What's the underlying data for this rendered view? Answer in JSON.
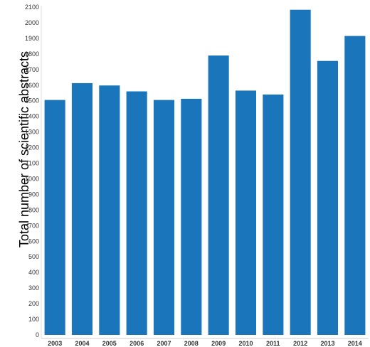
{
  "chart_data": {
    "type": "bar",
    "ylabel": "Total number of scientific abstracts",
    "xlabel": "",
    "title": "",
    "categories": [
      "2003",
      "2004",
      "2005",
      "2006",
      "2007",
      "2008",
      "2009",
      "2010",
      "2011",
      "2012",
      "2013",
      "2014"
    ],
    "values": [
      1505,
      1613,
      1598,
      1560,
      1505,
      1513,
      1790,
      1565,
      1540,
      2083,
      1755,
      1915
    ],
    "ylim": [
      0,
      2100
    ],
    "yticks": [
      0,
      100,
      200,
      300,
      400,
      500,
      600,
      700,
      800,
      900,
      1000,
      1100,
      1200,
      1300,
      1400,
      1500,
      1600,
      1700,
      1800,
      1900,
      2000,
      2100
    ],
    "bar_color": "#1b75bb",
    "grid": false,
    "legend": "none"
  }
}
